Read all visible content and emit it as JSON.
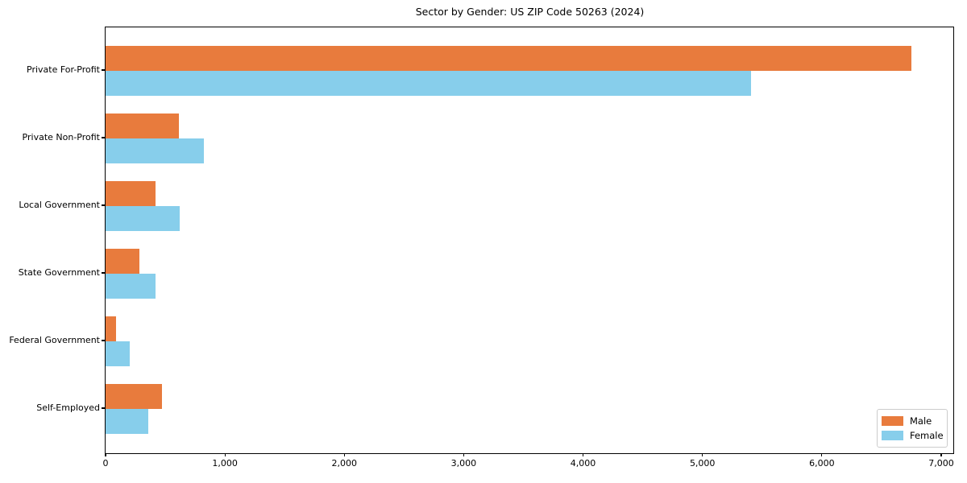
{
  "chart_data": {
    "type": "bar",
    "orientation": "horizontal",
    "title": "Sector by Gender: US ZIP Code 50263 (2024)",
    "categories": [
      "Private For-Profit",
      "Private Non-Profit",
      "Local Government",
      "State Government",
      "Federal Government",
      "Self-Employed"
    ],
    "series": [
      {
        "name": "Male",
        "color": "#e87b3d",
        "values": [
          6750,
          615,
          420,
          280,
          85,
          475
        ]
      },
      {
        "name": "Female",
        "color": "#87ceeb",
        "values": [
          5410,
          825,
          620,
          420,
          200,
          355
        ]
      }
    ],
    "xlabel": "",
    "ylabel": "",
    "xlim": [
      0,
      7100
    ],
    "xticks": [
      0,
      1000,
      2000,
      3000,
      4000,
      5000,
      6000,
      7000
    ],
    "xtick_labels": [
      "0",
      "1,000",
      "2,000",
      "3,000",
      "4,000",
      "5,000",
      "6,000",
      "7,000"
    ],
    "grid": false,
    "background_color": "#ffffff",
    "spine_color": "#000000",
    "legend": {
      "position": "lower right"
    }
  }
}
